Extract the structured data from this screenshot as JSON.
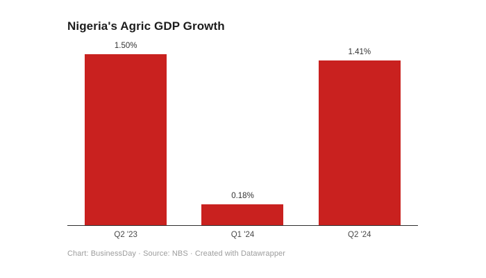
{
  "header": {
    "title": "Nigeria's Agric GDP Growth"
  },
  "chart_data": {
    "type": "bar",
    "title": "Nigeria's Agric GDP Growth",
    "categories": [
      "Q2 '23",
      "Q1 '24",
      "Q2 '24"
    ],
    "values": [
      1.5,
      0.18,
      1.41
    ],
    "value_labels": [
      "1.50%",
      "0.18%",
      "1.41%"
    ],
    "xlabel": "",
    "ylabel": "",
    "ylim": [
      0,
      1.5
    ],
    "grid": false,
    "legend": "none",
    "bar_color": "#c9211f",
    "axis_line_color": "#2e2e2e"
  },
  "footer": {
    "credit": "Chart: BusinessDay · Source: NBS · Created with Datawrapper"
  }
}
